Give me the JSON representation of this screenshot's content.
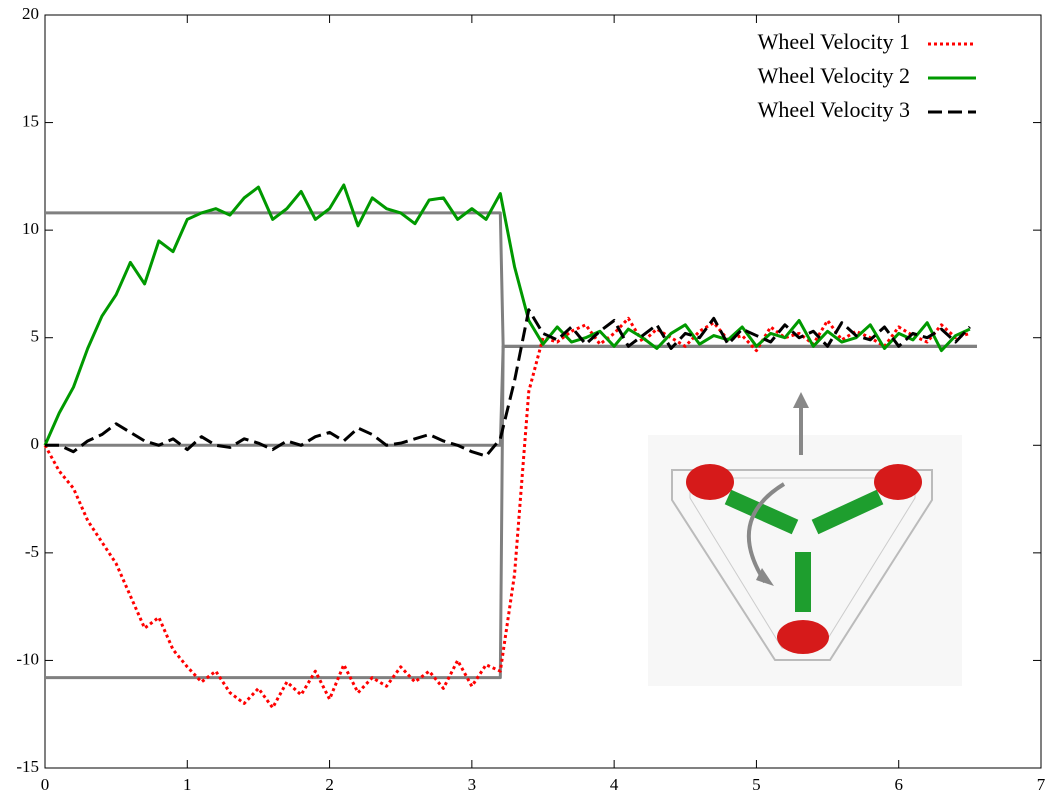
{
  "chart_data": {
    "type": "line",
    "x": [
      0,
      0.1,
      0.2,
      0.3,
      0.4,
      0.5,
      0.6,
      0.7,
      0.8,
      0.9,
      1,
      1.1,
      1.2,
      1.3,
      1.4,
      1.5,
      1.6,
      1.7,
      1.8,
      1.9,
      2,
      2.1,
      2.2,
      2.3,
      2.4,
      2.5,
      2.6,
      2.7,
      2.8,
      2.9,
      3,
      3.1,
      3.2,
      3.3,
      3.4,
      3.5,
      3.6,
      3.7,
      3.8,
      3.9,
      4,
      4.1,
      4.2,
      4.3,
      4.4,
      4.5,
      4.6,
      4.7,
      4.8,
      4.9,
      5,
      5.1,
      5.2,
      5.3,
      5.4,
      5.5,
      5.6,
      5.7,
      5.8,
      5.9,
      6,
      6.1,
      6.2,
      6.3,
      6.4,
      6.5
    ],
    "series": [
      {
        "color": "#808080",
        "dash": "solid",
        "x": [
          0,
          3.2,
          3.22,
          6.55
        ],
        "values": [
          -10.8,
          -10.8,
          4.6,
          4.6
        ]
      },
      {
        "color": "#808080",
        "dash": "solid",
        "x": [
          0,
          3.2,
          3.22,
          6.55
        ],
        "values": [
          10.8,
          10.8,
          4.6,
          4.6
        ]
      },
      {
        "color": "#808080",
        "dash": "solid",
        "x": [
          0,
          3.2,
          3.22,
          6.55
        ],
        "values": [
          0,
          0,
          4.6,
          4.6
        ]
      },
      {
        "name": "Wheel Velocity 1",
        "color": "#ff0000",
        "dash": "dotted",
        "values": [
          0,
          -1.2,
          -2,
          -3.5,
          -4.5,
          -5.5,
          -7,
          -8.5,
          -8,
          -9.5,
          -10.3,
          -11,
          -10.5,
          -11.5,
          -12,
          -11.3,
          -12.2,
          -11,
          -11.6,
          -10.5,
          -11.8,
          -10.2,
          -11.5,
          -10.8,
          -11.2,
          -10.3,
          -11,
          -10.5,
          -11.3,
          -10,
          -11.2,
          -10.2,
          -10.5,
          -6,
          2.5,
          5,
          4.8,
          5.3,
          5.6,
          4.7,
          5.2,
          5.9,
          4.8,
          5.4,
          5,
          4.6,
          5.3,
          5.7,
          4.9,
          5.1,
          4.4,
          5.5,
          5,
          5.2,
          4.7,
          5.8,
          4.9,
          5.3,
          5,
          4.6,
          5.5,
          5.1,
          4.8,
          5.6,
          5,
          5.2
        ]
      },
      {
        "name": "Wheel Velocity 2",
        "color": "#009900",
        "dash": "solid",
        "values": [
          0,
          1.5,
          2.7,
          4.5,
          6,
          7,
          8.5,
          7.5,
          9.5,
          9,
          10.5,
          10.8,
          11,
          10.7,
          11.5,
          12,
          10.5,
          11,
          11.8,
          10.5,
          11,
          12.1,
          10.2,
          11.5,
          11,
          10.8,
          10.3,
          11.4,
          11.5,
          10.5,
          11,
          10.5,
          11.7,
          8.3,
          5.8,
          4.7,
          5.5,
          4.8,
          5,
          5.3,
          4.6,
          5.4,
          5,
          4.5,
          5.2,
          5.6,
          4.7,
          5.1,
          4.9,
          5.5,
          4.6,
          5.2,
          5,
          5.8,
          4.6,
          5.3,
          4.8,
          5,
          5.6,
          4.5,
          5.2,
          4.9,
          5.7,
          4.4,
          5.1,
          5.4
        ]
      },
      {
        "name": "Wheel Velocity 3",
        "color": "#000000",
        "dash": "dashed",
        "values": [
          0,
          0,
          -0.3,
          0.2,
          0.5,
          1,
          0.6,
          0.2,
          0,
          0.3,
          -0.2,
          0.4,
          0,
          -0.1,
          0.3,
          0.1,
          -0.2,
          0.2,
          0,
          0.4,
          0.6,
          0.2,
          0.8,
          0.5,
          0,
          0.1,
          0.3,
          0.5,
          0.2,
          0,
          -0.3,
          -0.5,
          0.3,
          3,
          6.3,
          5.2,
          4.9,
          5.5,
          4.7,
          5.3,
          5.8,
          4.6,
          5.1,
          5.6,
          4.5,
          5.2,
          5,
          5.9,
          4.7,
          5.4,
          5.1,
          4.8,
          5.6,
          5,
          5.3,
          4.6,
          5.7,
          5.1,
          4.9,
          5.5,
          4.6,
          5.2,
          5,
          5.4,
          4.8,
          5.5
        ]
      }
    ],
    "xlim": [
      0,
      7
    ],
    "xticks": [
      0,
      1,
      2,
      3,
      4,
      5,
      6,
      7
    ],
    "ylim": [
      -15,
      20
    ],
    "yticks": [
      -15,
      -10,
      -5,
      0,
      5,
      10,
      15,
      20
    ],
    "legend": "top-right"
  }
}
